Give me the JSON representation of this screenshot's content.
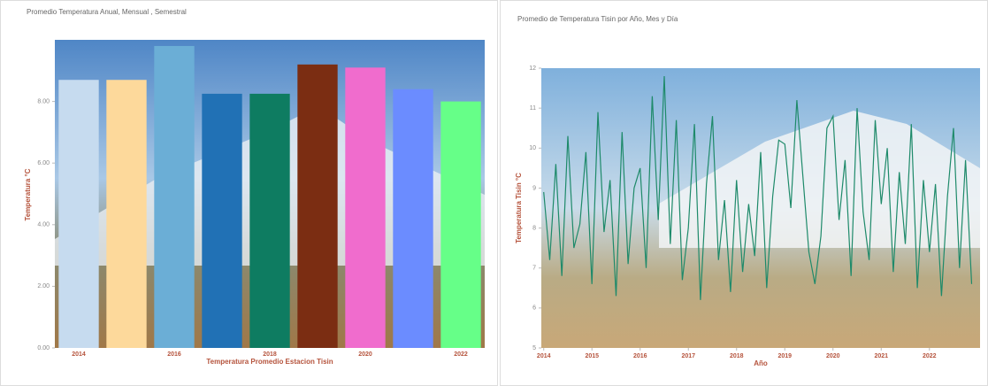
{
  "chart_data": [
    {
      "type": "bar",
      "title": "Promedio Temperatura Anual, Mensual , Semestral",
      "y_label": "Temperatura °C",
      "x_label": "Temperatura Promedio Estacion Tisin",
      "categories": [
        "2014",
        null,
        "2016",
        null,
        "2018",
        null,
        "2020",
        null,
        "2022"
      ],
      "values": [
        8.7,
        8.7,
        9.8,
        8.25,
        8.25,
        9.2,
        9.1,
        8.4,
        8.0
      ],
      "colors": [
        "#c6dbef",
        "#fdd99b",
        "#6baed6",
        "#2171b5",
        "#0e7c61",
        "#7b2d12",
        "#f06ccd",
        "#6b8cff",
        "#66ff88"
      ],
      "ylim": [
        0,
        10
      ],
      "yticks": [
        {
          "value": 0,
          "label": "0.00"
        },
        {
          "value": 2,
          "label": "2.00"
        },
        {
          "value": 4,
          "label": "4.00"
        },
        {
          "value": 6,
          "label": "6.00"
        },
        {
          "value": 8,
          "label": "8.00"
        }
      ]
    },
    {
      "type": "line",
      "title": "Promedio de Temperatura Tisin por Año, Mes y Día",
      "y_label": "Temperatura Tisin °C",
      "x_label": "Año",
      "color": "#1e8a6a",
      "x": [
        2014,
        2014.125,
        2014.25,
        2014.375,
        2014.5,
        2014.625,
        2014.75,
        2014.875,
        2015,
        2015.125,
        2015.25,
        2015.375,
        2015.5,
        2015.625,
        2015.75,
        2015.875,
        2016,
        2016.125,
        2016.25,
        2016.375,
        2016.5,
        2016.625,
        2016.75,
        2016.875,
        2017,
        2017.125,
        2017.25,
        2017.375,
        2017.5,
        2017.625,
        2017.75,
        2017.875,
        2018,
        2018.125,
        2018.25,
        2018.375,
        2018.5,
        2018.625,
        2018.75,
        2018.875,
        2019,
        2019.125,
        2019.25,
        2019.375,
        2019.5,
        2019.625,
        2019.75,
        2019.875,
        2020,
        2020.125,
        2020.25,
        2020.375,
        2020.5,
        2020.625,
        2020.75,
        2020.875,
        2021,
        2021.125,
        2021.25,
        2021.375,
        2021.5,
        2021.625,
        2021.75,
        2021.875,
        2022,
        2022.125,
        2022.25,
        2022.375,
        2022.5,
        2022.625,
        2022.75,
        2022.875
      ],
      "values": [
        8.9,
        7.2,
        9.6,
        6.8,
        10.3,
        7.5,
        8.1,
        9.9,
        6.6,
        10.9,
        7.9,
        9.2,
        6.3,
        10.4,
        7.1,
        9.0,
        9.5,
        7.0,
        11.3,
        8.2,
        11.8,
        7.6,
        10.7,
        6.7,
        8.0,
        10.6,
        6.2,
        9.1,
        10.8,
        7.2,
        8.7,
        6.4,
        9.2,
        6.9,
        8.6,
        7.3,
        9.9,
        6.5,
        8.8,
        10.2,
        10.1,
        8.5,
        11.2,
        9.3,
        7.4,
        6.6,
        7.8,
        10.5,
        10.8,
        8.2,
        9.7,
        6.8,
        11.0,
        8.4,
        7.2,
        10.7,
        8.6,
        10.0,
        6.9,
        9.4,
        7.6,
        10.6,
        6.5,
        9.2,
        7.4,
        9.1,
        6.3,
        8.8,
        10.5,
        7.0,
        9.7,
        6.6
      ],
      "xlim": [
        2013.95,
        2023.05
      ],
      "xticks": [
        2014,
        2015,
        2016,
        2017,
        2018,
        2019,
        2020,
        2021,
        2022
      ],
      "ylim": [
        5,
        12
      ],
      "yticks": [
        5,
        6,
        7,
        8,
        9,
        10,
        11,
        12
      ]
    }
  ]
}
